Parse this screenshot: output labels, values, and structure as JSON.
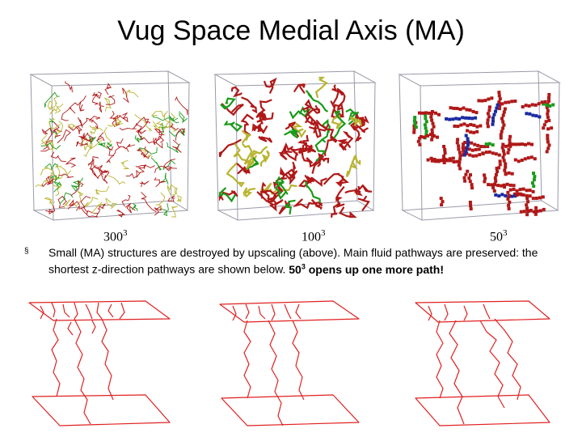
{
  "slide": {
    "title": "Vug Space Medial Axis (MA)",
    "resolutions": [
      {
        "base": "300",
        "exp": "3"
      },
      {
        "base": "100",
        "exp": "3"
      },
      {
        "base": "50",
        "exp": "3"
      }
    ],
    "bullet": {
      "marker": "§",
      "text_plain": "Small (MA) structures are destroyed by upscaling (above). Main fluid pathways are preserved: the shortest z-direction pathways are shown below. ",
      "bold_base": "50",
      "bold_exp": "3",
      "bold_rest": " opens up one more path!"
    },
    "colors": {
      "ma_red": "#b01818",
      "ma_yellow": "#b8b430",
      "ma_green": "#1a9a1a",
      "ma_blue": "#1a2aa0",
      "path_red": "#e02020",
      "box_gray": "#9a9aa8"
    }
  }
}
